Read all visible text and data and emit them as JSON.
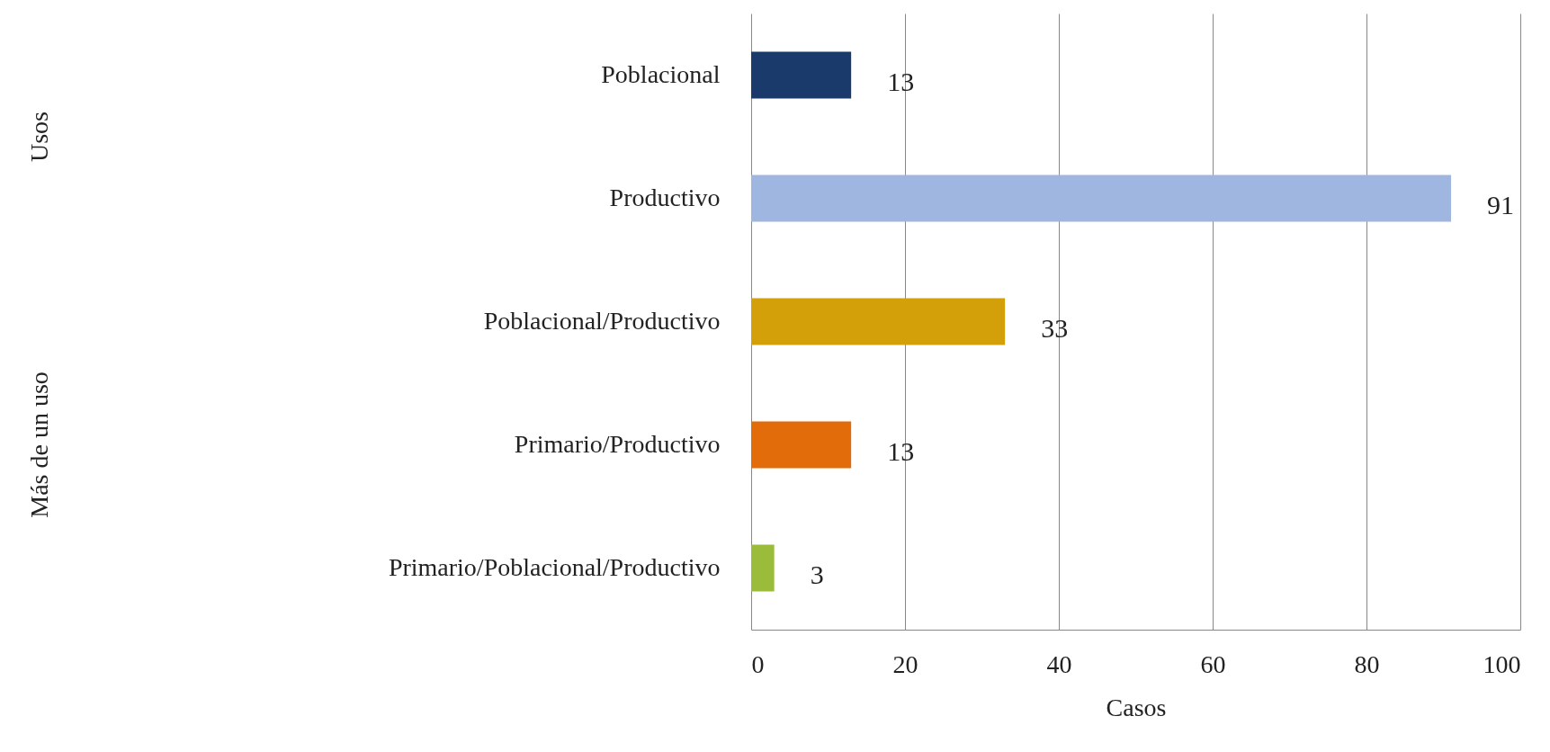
{
  "chart_data": {
    "type": "bar",
    "orientation": "horizontal",
    "xlabel": "Casos",
    "categories": [
      "Poblacional",
      "Productivo",
      "Poblacional/Productivo",
      "Primario/Productivo",
      "Primario/Poblacional/Productivo"
    ],
    "values": [
      13,
      91,
      33,
      13,
      3
    ],
    "colors": [
      "#1a3a6b",
      "#9fb6e0",
      "#d4a00a",
      "#e36c0a",
      "#9bbb3b"
    ],
    "xlim": [
      0,
      100
    ],
    "xticks": [
      0,
      20,
      40,
      60,
      80,
      100
    ],
    "grid": "x",
    "data_labels": true,
    "annotations": [
      "Usos",
      "Más de un uso"
    ]
  }
}
